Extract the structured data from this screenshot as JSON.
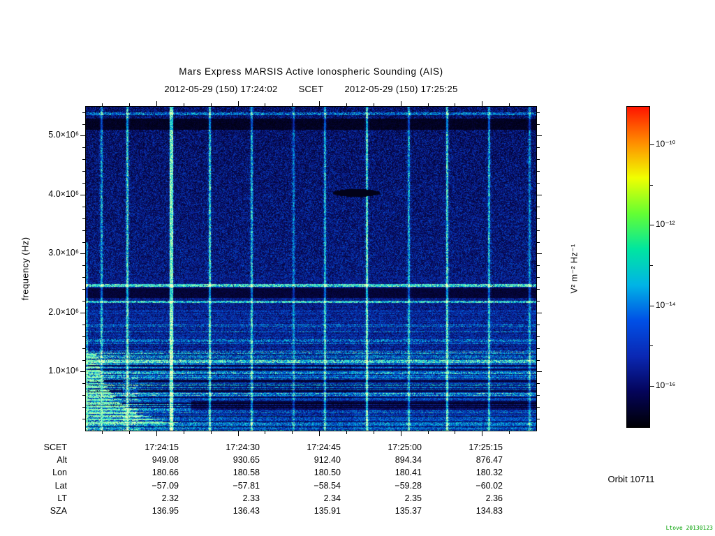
{
  "header": {
    "scet_separator_label": "SCET"
  },
  "orbit_label": "Orbit 10711",
  "watermark": "Ltove 20130123",
  "chart_data": [
    {
      "type": "heatmap",
      "title": "Mars Express MARSIS Active Ionospheric Sounding (AIS)",
      "time_start_scet": "2012-05-29 (150) 17:24:02",
      "time_end_scet": "2012-05-29 (150) 17:25:25",
      "duration_seconds": 83,
      "ylabel": "frequency (Hz)",
      "ylim_hz": [
        0,
        5490000
      ],
      "y_ticks": [
        {
          "label": "5.0×10⁶",
          "hz": 5000000
        },
        {
          "label": "4.0×10⁶",
          "hz": 4000000
        },
        {
          "label": "3.0×10⁶",
          "hz": 3000000
        },
        {
          "label": "2.0×10⁶",
          "hz": 2000000
        },
        {
          "label": "1.0×10⁶",
          "hz": 1000000
        }
      ],
      "x_major_ticks_scet": [
        "17:24:15",
        "17:24:30",
        "17:24:45",
        "17:25:00",
        "17:25:15"
      ],
      "x_major_tick_interval_s": 15,
      "x_minor_tick_interval_s": 5,
      "colorbar": {
        "label": "V² m⁻² Hz⁻¹",
        "scale": "log",
        "tick_labels": [
          "10⁻¹⁰",
          "10⁻¹²",
          "10⁻¹⁴",
          "10⁻¹⁶"
        ],
        "colors": [
          "#000004",
          "#04045a",
          "#0a28b4",
          "#0050e6",
          "#00b4e6",
          "#00e6a0",
          "#64ff32",
          "#f0ff00",
          "#ff8c00",
          "#ff1400"
        ]
      },
      "features": [
        "periodic vertical sounder-pulse streaks about every 7.5 s across full band",
        "bright harmonic lines near 2.2×10⁶ Hz and 2.47×10⁶ Hz with dark gap between",
        "broadband low-frequency ionospheric echo striations below 1.3×10⁶ Hz, strongest at left edge",
        "dark absorption patch near 4.0×10⁶ Hz around 17:24:50",
        "dark band near 5.2×10⁶ Hz at top of band"
      ]
    },
    {
      "type": "table",
      "row_labels": [
        "SCET",
        "Alt",
        "Lon",
        "Lat",
        "LT",
        "SZA"
      ],
      "rows": [
        [
          "17:24:15",
          "17:24:30",
          "17:24:45",
          "17:25:00",
          "17:25:15"
        ],
        [
          "949.08",
          "930.65",
          "912.40",
          "894.34",
          "876.47"
        ],
        [
          "180.66",
          "180.58",
          "180.50",
          "180.41",
          "180.32"
        ],
        [
          "−57.09",
          "−57.81",
          "−58.54",
          "−59.28",
          "−60.02"
        ],
        [
          "2.32",
          "2.33",
          "2.34",
          "2.35",
          "2.36"
        ],
        [
          "136.95",
          "136.43",
          "135.91",
          "135.37",
          "134.83"
        ]
      ]
    }
  ]
}
